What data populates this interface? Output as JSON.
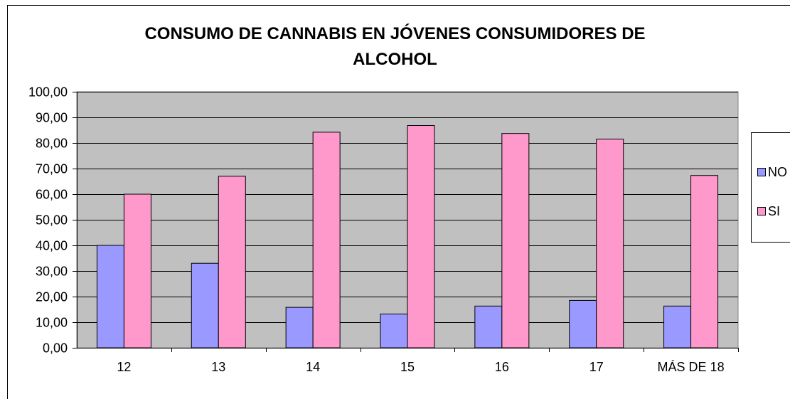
{
  "chart_data": {
    "type": "bar",
    "title_lines": [
      "CONSUMO DE CANNABIS EN JÓVENES CONSUMIDORES DE",
      "ALCOHOL"
    ],
    "categories": [
      "12",
      "13",
      "14",
      "15",
      "16",
      "17",
      "MÁS DE 18"
    ],
    "series": [
      {
        "name": "NO",
        "color": "#9999ff",
        "values": [
          40.0,
          33.0,
          15.8,
          13.2,
          16.3,
          18.5,
          16.3
        ]
      },
      {
        "name": "SI",
        "color": "#ff99cc",
        "values": [
          60.0,
          67.0,
          84.2,
          86.8,
          83.7,
          81.5,
          67.3
        ]
      }
    ],
    "ylim": [
      0,
      100
    ],
    "y_ticks": [
      "0,00",
      "10,00",
      "20,00",
      "30,00",
      "40,00",
      "50,00",
      "60,00",
      "70,00",
      "80,00",
      "90,00",
      "100,00"
    ],
    "plot_background": "#c0c0c0",
    "grid": true,
    "legend_position": "right"
  }
}
